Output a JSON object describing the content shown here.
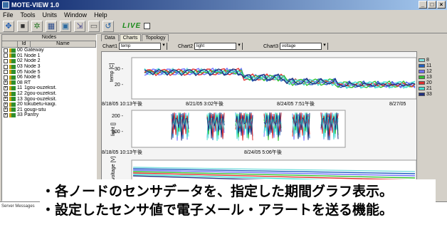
{
  "window": {
    "title": "MOTE-VIEW 1.0"
  },
  "menu": [
    "File",
    "Tools",
    "Units",
    "Window",
    "Help"
  ],
  "toolbar": {
    "live_label": "LIVE"
  },
  "nodes_panel": {
    "header": "Nodes",
    "col_id": "Id",
    "col_name": "Name",
    "nodes": [
      {
        "id": "00",
        "name": "Gateway",
        "checked": false
      },
      {
        "id": "01",
        "name": "Node 1",
        "checked": false
      },
      {
        "id": "02",
        "name": "Node 2",
        "checked": false
      },
      {
        "id": "03",
        "name": "Node 3",
        "checked": false
      },
      {
        "id": "05",
        "name": "Node 5",
        "checked": false
      },
      {
        "id": "06",
        "name": "Node 6",
        "checked": false
      },
      {
        "id": "08",
        "name": "RT",
        "checked": true
      },
      {
        "id": "11",
        "name": "1gou-ouzeksit.",
        "checked": true
      },
      {
        "id": "12",
        "name": "2gou-ouzeksit.",
        "checked": true
      },
      {
        "id": "13",
        "name": "3gou-ouzeksit.",
        "checked": true
      },
      {
        "id": "20",
        "name": "tokubetu-kaigi.",
        "checked": true
      },
      {
        "id": "21",
        "name": "gougi-situ",
        "checked": true
      },
      {
        "id": "33",
        "name": "Pantry",
        "checked": true
      }
    ]
  },
  "tabs": [
    "Data",
    "Charts",
    "Topology"
  ],
  "chart_selectors": [
    {
      "label": "Chart1",
      "value": "temp"
    },
    {
      "label": "Chart2",
      "value": "light"
    },
    {
      "label": "Chart3",
      "value": "voltage"
    }
  ],
  "chart_data": [
    {
      "type": "line",
      "ylabel": "temp [C]",
      "yticks": [
        "30 -",
        "20 -"
      ],
      "xticks": [
        "8/18/05 10:13午後",
        "8/21/05 3:02午後",
        "8/24/05 7:51午後",
        "8/27/05"
      ],
      "series": [
        {
          "name": "8",
          "color": "#7fe0e0"
        },
        {
          "name": "11",
          "color": "#2060c0"
        },
        {
          "name": "12",
          "color": "#7070ff"
        },
        {
          "name": "13",
          "color": "#30c030"
        },
        {
          "name": "20",
          "color": "#e03030"
        },
        {
          "name": "21",
          "color": "#40e0d0"
        },
        {
          "name": "33",
          "color": "#203080"
        }
      ]
    },
    {
      "type": "line",
      "ylabel": "light []",
      "yticks": [
        "200 -",
        "100 -"
      ],
      "xticks": [
        "8/18/05 10:13午後",
        "8/24/05 5:06午後"
      ]
    },
    {
      "type": "line",
      "ylabel": "voltage [V]",
      "yticks": []
    }
  ],
  "server_label": "Server Messages",
  "overlay": {
    "line1": "・各ノードのセンサデータを、指定した期間グラフ表示。",
    "line2": "・設定したセンサ値で電子メール・アラートを送る機能。"
  }
}
